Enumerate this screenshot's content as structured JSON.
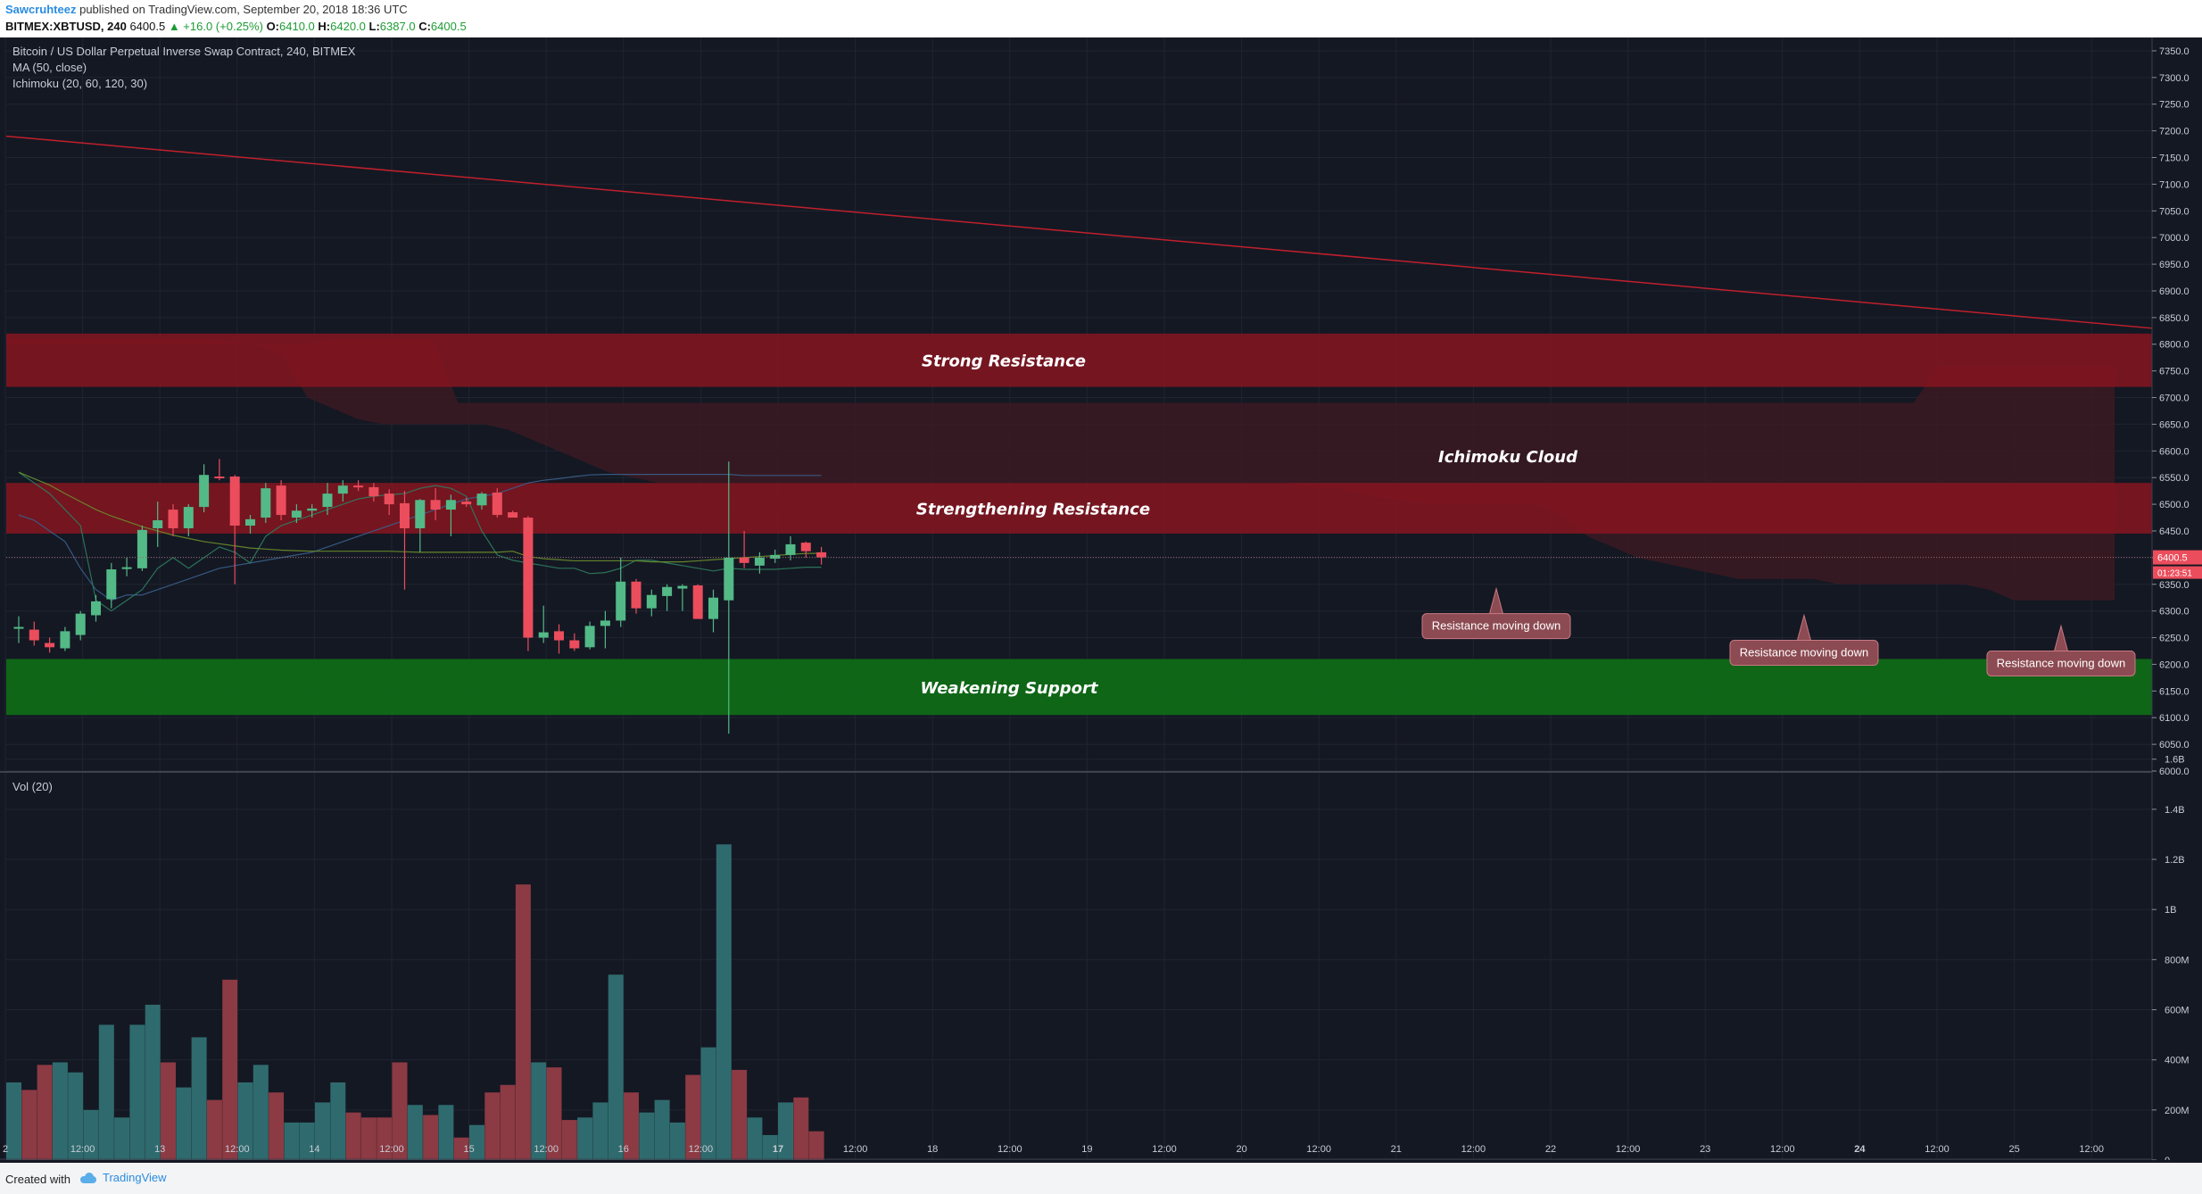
{
  "header": {
    "author": "Sawcruhteez",
    "published_text": " published on TradingView.com, September 20, 2018 18:36 UTC",
    "symbol_interval": "BITMEX:XBTUSD, 240",
    "last_price": "6400.5",
    "change": "▲ +16.0 (+0.25%)",
    "open_label": "O:",
    "open_value": "6410.0",
    "high_label": "H:",
    "high_value": "6420.0",
    "low_label": "L:",
    "low_value": "6387.0",
    "close_label": "C:",
    "close_value": "6400.5"
  },
  "legend": {
    "title": "Bitcoin / US Dollar Perpetual Inverse Swap Contract, 240, BITMEX",
    "ma": "MA (50, close)",
    "ichimoku": "Ichimoku (20, 60, 120, 30)",
    "volume": "Vol (20)"
  },
  "footer": {
    "created_with": "Created with",
    "brand": "TradingView"
  },
  "colors": {
    "background": "#141823",
    "up": "#53b987",
    "down": "#eb4d5c",
    "vol_up": "#2f6b6e",
    "vol_down": "#8c3a43",
    "resistance_zone": "#8a1520",
    "support_zone": "#0f6a17",
    "cloud": "#3b1a22",
    "trendline": "#c0202c",
    "label_bg": "#8c4a52"
  },
  "chart_data": {
    "type": "candlestick",
    "y_axis": {
      "ylim": [
        6000,
        7375
      ],
      "ticks": [
        6000,
        6050,
        6100,
        6150,
        6200,
        6250,
        6300,
        6350,
        6400,
        6450,
        6500,
        6550,
        6600,
        6650,
        6700,
        6750,
        6800,
        6850,
        6900,
        6950,
        7000,
        7050,
        7100,
        7150,
        7200,
        7250,
        7300,
        7350
      ],
      "tick_labels": [
        "6000.0",
        "6050.0",
        "6100.0",
        "6150.0",
        "6200.0",
        "6250.0",
        "6300.0",
        "6350.0",
        "6400.0",
        "6450.0",
        "6500.0",
        "6550.0",
        "6600.0",
        "6650.0",
        "6700.0",
        "6750.0",
        "6800.0",
        "6850.0",
        "6900.0",
        "6950.0",
        "7000.0",
        "7050.0",
        "7100.0",
        "7150.0",
        "7200.0",
        "7250.0",
        "7300.0",
        "7350.0"
      ]
    },
    "x_axis": {
      "labels": [
        "2",
        "12:00",
        "13",
        "12:00",
        "14",
        "12:00",
        "15",
        "12:00",
        "16",
        "12:00",
        "17",
        "12:00",
        "18",
        "12:00",
        "19",
        "12:00",
        "20",
        "12:00",
        "21",
        "12:00",
        "22",
        "12:00",
        "23",
        "12:00",
        "24",
        "12:00",
        "25",
        "12:00"
      ],
      "bold": [
        "17",
        "24"
      ]
    },
    "price_label": "6400.5",
    "countdown_label": "01:23:51",
    "candles": [
      {
        "o": 6270,
        "h": 6290,
        "l": 6240,
        "c": 6270
      },
      {
        "o": 6265,
        "h": 6280,
        "l": 6235,
        "c": 6245
      },
      {
        "o": 6240,
        "h": 6250,
        "l": 6222,
        "c": 6232
      },
      {
        "o": 6230,
        "h": 6270,
        "l": 6225,
        "c": 6262
      },
      {
        "o": 6255,
        "h": 6300,
        "l": 6245,
        "c": 6295
      },
      {
        "o": 6292,
        "h": 6330,
        "l": 6280,
        "c": 6318
      },
      {
        "o": 6322,
        "h": 6390,
        "l": 6305,
        "c": 6378
      },
      {
        "o": 6380,
        "h": 6400,
        "l": 6365,
        "c": 6382
      },
      {
        "o": 6380,
        "h": 6460,
        "l": 6375,
        "c": 6452
      },
      {
        "o": 6455,
        "h": 6505,
        "l": 6420,
        "c": 6470
      },
      {
        "o": 6490,
        "h": 6500,
        "l": 6440,
        "c": 6455
      },
      {
        "o": 6455,
        "h": 6500,
        "l": 6440,
        "c": 6495
      },
      {
        "o": 6495,
        "h": 6575,
        "l": 6485,
        "c": 6555
      },
      {
        "o": 6552,
        "h": 6585,
        "l": 6545,
        "c": 6550
      },
      {
        "o": 6552,
        "h": 6555,
        "l": 6350,
        "c": 6460
      },
      {
        "o": 6460,
        "h": 6480,
        "l": 6445,
        "c": 6472
      },
      {
        "o": 6475,
        "h": 6540,
        "l": 6465,
        "c": 6530
      },
      {
        "o": 6535,
        "h": 6545,
        "l": 6470,
        "c": 6480
      },
      {
        "o": 6475,
        "h": 6500,
        "l": 6465,
        "c": 6488
      },
      {
        "o": 6488,
        "h": 6500,
        "l": 6475,
        "c": 6492
      },
      {
        "o": 6495,
        "h": 6540,
        "l": 6480,
        "c": 6520
      },
      {
        "o": 6520,
        "h": 6545,
        "l": 6505,
        "c": 6535
      },
      {
        "o": 6535,
        "h": 6545,
        "l": 6525,
        "c": 6532
      },
      {
        "o": 6532,
        "h": 6540,
        "l": 6505,
        "c": 6515
      },
      {
        "o": 6520,
        "h": 6528,
        "l": 6480,
        "c": 6500
      },
      {
        "o": 6502,
        "h": 6525,
        "l": 6340,
        "c": 6455
      },
      {
        "o": 6455,
        "h": 6510,
        "l": 6410,
        "c": 6508
      },
      {
        "o": 6508,
        "h": 6530,
        "l": 6470,
        "c": 6490
      },
      {
        "o": 6490,
        "h": 6518,
        "l": 6440,
        "c": 6508
      },
      {
        "o": 6505,
        "h": 6512,
        "l": 6495,
        "c": 6500
      },
      {
        "o": 6498,
        "h": 6523,
        "l": 6490,
        "c": 6520
      },
      {
        "o": 6522,
        "h": 6530,
        "l": 6475,
        "c": 6480
      },
      {
        "o": 6485,
        "h": 6488,
        "l": 6480,
        "c": 6475
      },
      {
        "o": 6475,
        "h": 6478,
        "l": 6225,
        "c": 6250
      },
      {
        "o": 6250,
        "h": 6310,
        "l": 6240,
        "c": 6260
      },
      {
        "o": 6262,
        "h": 6275,
        "l": 6220,
        "c": 6245
      },
      {
        "o": 6245,
        "h": 6258,
        "l": 6225,
        "c": 6230
      },
      {
        "o": 6232,
        "h": 6280,
        "l": 6228,
        "c": 6272
      },
      {
        "o": 6272,
        "h": 6300,
        "l": 6230,
        "c": 6282
      },
      {
        "o": 6282,
        "h": 6400,
        "l": 6270,
        "c": 6355
      },
      {
        "o": 6355,
        "h": 6360,
        "l": 6295,
        "c": 6305
      },
      {
        "o": 6305,
        "h": 6340,
        "l": 6290,
        "c": 6330
      },
      {
        "o": 6328,
        "h": 6350,
        "l": 6300,
        "c": 6345
      },
      {
        "o": 6342,
        "h": 6350,
        "l": 6300,
        "c": 6347
      },
      {
        "o": 6348,
        "h": 6350,
        "l": 6290,
        "c": 6285
      },
      {
        "o": 6285,
        "h": 6340,
        "l": 6260,
        "c": 6325
      },
      {
        "o": 6320,
        "h": 6580,
        "l": 6070,
        "c": 6400
      },
      {
        "o": 6400,
        "h": 6450,
        "l": 6380,
        "c": 6390
      },
      {
        "o": 6385,
        "h": 6410,
        "l": 6370,
        "c": 6400
      },
      {
        "o": 6398,
        "h": 6415,
        "l": 6390,
        "c": 6405
      },
      {
        "o": 6405,
        "h": 6440,
        "l": 6395,
        "c": 6425
      },
      {
        "o": 6428,
        "h": 6430,
        "l": 6400,
        "c": 6412
      },
      {
        "o": 6410,
        "h": 6420,
        "l": 6387,
        "c": 6400.5
      }
    ],
    "ma50": [
      6560,
      6548,
      6536,
      6520,
      6505,
      6490,
      6478,
      6468,
      6458,
      6450,
      6442,
      6436,
      6430,
      6426,
      6422,
      6418,
      6416,
      6414,
      6413,
      6412,
      6412,
      6412,
      6412,
      6412,
      6412,
      6411,
      6410,
      6410,
      6410,
      6410,
      6410,
      6410,
      6412,
      6402,
      6398,
      6396,
      6394,
      6394,
      6394,
      6394,
      6394,
      6392,
      6392,
      6392,
      6394,
      6396,
      6398,
      6400,
      6402,
      6404,
      6406,
      6408,
      6408
    ],
    "ichimoku_lines": {
      "conversion": [
        6560,
        6540,
        6520,
        6490,
        6460,
        6320,
        6300,
        6320,
        6340,
        6380,
        6400,
        6380,
        6400,
        6420,
        6410,
        6390,
        6440,
        6460,
        6470,
        6480,
        6490,
        6500,
        6510,
        6515,
        6518,
        6520,
        6530,
        6535,
        6530,
        6515,
        6450,
        6405,
        6395,
        6390,
        6385,
        6380,
        6380,
        6370,
        6372,
        6380,
        6395,
        6395,
        6390,
        6385,
        6380,
        6375,
        6380,
        6378,
        6378,
        6378,
        6380,
        6382,
        6382
      ],
      "base": [
        6480,
        6470,
        6450,
        6430,
        6380,
        6340,
        6320,
        6330,
        6330,
        6340,
        6350,
        6360,
        6370,
        6380,
        6385,
        6390,
        6395,
        6400,
        6405,
        6410,
        6420,
        6430,
        6440,
        6450,
        6460,
        6470,
        6480,
        6490,
        6500,
        6510,
        6515,
        6520,
        6530,
        6540,
        6545,
        6548,
        6552,
        6555,
        6556,
        6556,
        6556,
        6556,
        6556,
        6556,
        6556,
        6556,
        6556,
        6554,
        6554,
        6554,
        6554,
        6554,
        6554
      ]
    },
    "ichimoku_cloud": {
      "top": [
        6810,
        6810,
        6810,
        6810,
        6810,
        6810,
        6810,
        6810,
        6810,
        6805,
        6800,
        6800,
        6800,
        6810,
        6810,
        6810,
        6810,
        6810,
        6690,
        6690,
        6690,
        6690,
        6690,
        6690,
        6690,
        6690,
        6690,
        6690,
        6690,
        6690,
        6690,
        6690,
        6690,
        6690,
        6690,
        6690,
        6690,
        6690,
        6690,
        6690,
        6690,
        6690,
        6690,
        6690,
        6690,
        6690,
        6690,
        6690,
        6690,
        6690,
        6690,
        6690,
        6690,
        6690,
        6690,
        6690,
        6690,
        6690,
        6690,
        6690,
        6690,
        6690,
        6690,
        6690,
        6690,
        6690,
        6690,
        6690,
        6690,
        6690,
        6690,
        6690,
        6690,
        6690,
        6690,
        6690,
        6690,
        6760,
        6760,
        6760,
        6760,
        6760,
        6760,
        6760,
        6760
      ],
      "bottom": [
        6800,
        6800,
        6800,
        6800,
        6800,
        6800,
        6800,
        6800,
        6800,
        6800,
        6800,
        6780,
        6700,
        6680,
        6660,
        6650,
        6650,
        6650,
        6650,
        6650,
        6640,
        6620,
        6600,
        6580,
        6560,
        6550,
        6540,
        6540,
        6540,
        6540,
        6540,
        6540,
        6540,
        6540,
        6540,
        6540,
        6540,
        6540,
        6540,
        6540,
        6540,
        6540,
        6540,
        6540,
        6540,
        6540,
        6540,
        6540,
        6540,
        6540,
        6540,
        6540,
        6530,
        6530,
        6520,
        6510,
        6505,
        6500,
        6500,
        6500,
        6500,
        6500,
        6480,
        6440,
        6420,
        6400,
        6390,
        6380,
        6370,
        6360,
        6360,
        6360,
        6360,
        6350,
        6350,
        6350,
        6350,
        6350,
        6350,
        6340,
        6320,
        6320,
        6320,
        6320,
        6320
      ]
    },
    "trendline": {
      "start": 7190,
      "end": 6830
    },
    "zones": [
      {
        "label": "Strong Resistance",
        "from": 6720,
        "to": 6820,
        "kind": "resistance"
      },
      {
        "label": "Strengthening Resistance",
        "from": 6445,
        "to": 6540,
        "kind": "resistance"
      },
      {
        "label": "Weakening Support",
        "from": 6105,
        "to": 6210,
        "kind": "support"
      }
    ],
    "annotations": [
      {
        "text": "Ichimoku Cloud"
      },
      {
        "text": "Resistance moving down",
        "at": 6295
      },
      {
        "text": "Resistance moving down",
        "at": 6245
      },
      {
        "text": "Resistance moving down",
        "at": 6225
      }
    ],
    "volume": {
      "ticks": [
        0,
        200,
        400,
        600,
        800,
        1000,
        1200,
        1400,
        1600
      ],
      "tick_labels": [
        "0",
        "200M",
        "400M",
        "600M",
        "800M",
        "1B",
        "1.2B",
        "1.4B",
        "1.6B"
      ],
      "values_m": [
        310,
        280,
        380,
        390,
        350,
        200,
        540,
        170,
        540,
        620,
        390,
        290,
        490,
        240,
        720,
        310,
        380,
        270,
        150,
        150,
        230,
        310,
        190,
        170,
        170,
        390,
        220,
        180,
        220,
        90,
        140,
        270,
        300,
        1100,
        390,
        370,
        160,
        170,
        230,
        740,
        270,
        190,
        240,
        150,
        340,
        450,
        1260,
        360,
        170,
        100,
        230,
        250,
        115
      ]
    }
  }
}
